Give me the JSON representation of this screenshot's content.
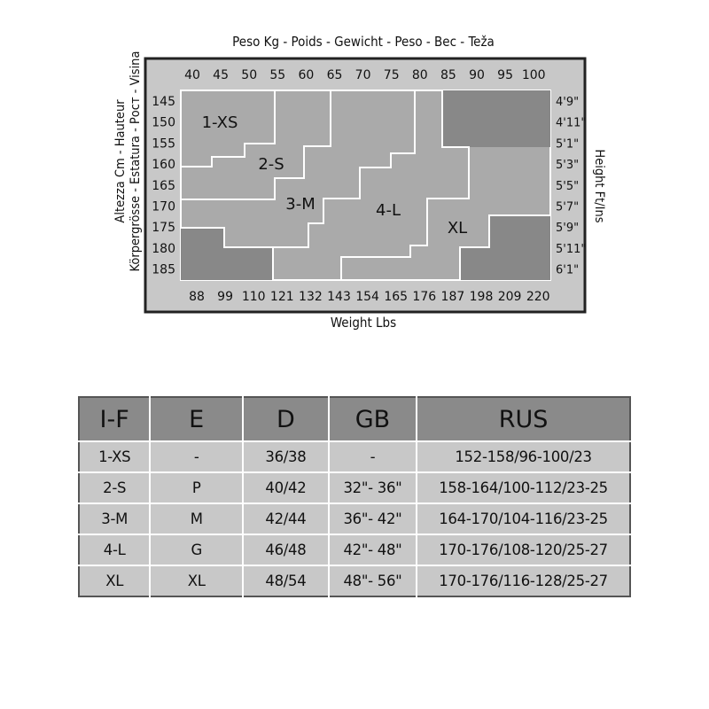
{
  "chart": {
    "top_title": "Peso Kg - Poids - Gewicht - Peso - Вес - Teža",
    "bottom_title": "Weight Lbs",
    "left_title_line1": "Altezza Cm - Hauteur",
    "left_title_line2": "Körpergrösse - Estatura - Рост - Visina",
    "right_title": "Height Ft/Ins",
    "kg_ticks": [
      "40",
      "45",
      "50",
      "55",
      "60",
      "65",
      "70",
      "75",
      "80",
      "85",
      "90",
      "95",
      "100"
    ],
    "lbs_ticks": [
      "88",
      "99",
      "110",
      "121",
      "132",
      "143",
      "154",
      "165",
      "176",
      "187",
      "198",
      "209",
      "220"
    ],
    "cm_ticks": [
      "145",
      "150",
      "155",
      "160",
      "165",
      "170",
      "175",
      "180",
      "185"
    ],
    "ft_ticks": [
      "4'9\"",
      "4'11\"",
      "5'1\"",
      "5'3\"",
      "5'5\"",
      "5'7\"",
      "5'9\"",
      "5'11\"",
      "6'1\""
    ],
    "size_regions": [
      "1-XS",
      "2-S",
      "3-M",
      "4-L",
      "XL"
    ],
    "colors": {
      "frame": "#c8c8c8",
      "region": "#aaaaaa",
      "excluded": "#888888",
      "lines": "#ffffff"
    }
  },
  "table": {
    "headers": [
      "I-F",
      "E",
      "D",
      "GB",
      "RUS"
    ],
    "rows": [
      [
        "1-XS",
        "-",
        "36/38",
        "-",
        "152-158/96-100/23"
      ],
      [
        "2-S",
        "P",
        "40/42",
        "32\"- 36\"",
        "158-164/100-112/23-25"
      ],
      [
        "3-M",
        "M",
        "42/44",
        "36\"- 42\"",
        "164-170/104-116/23-25"
      ],
      [
        "4-L",
        "G",
        "46/48",
        "42\"- 48\"",
        "170-176/108-120/25-27"
      ],
      [
        "XL",
        "XL",
        "48/54",
        "48\"- 56\"",
        "170-176/116-128/25-27"
      ]
    ]
  }
}
